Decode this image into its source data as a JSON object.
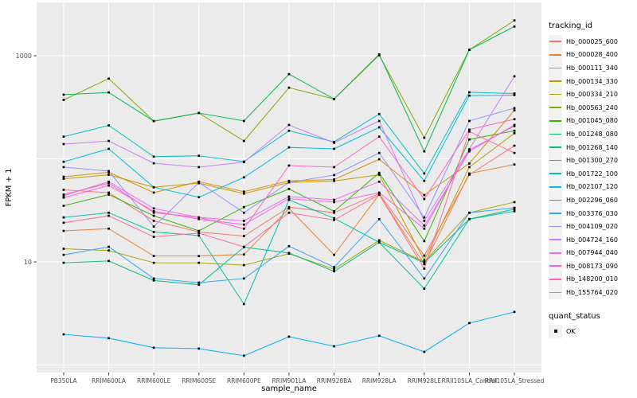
{
  "figure": {
    "background": "#ffffff",
    "panel_background": "#ebebeb",
    "gridline_color": "#ffffff",
    "tick_color": "#333333",
    "tick_label_color": "#4d4d4d",
    "axis_title_color": "#000000",
    "point_color": "#000000"
  },
  "axes": {
    "x_title": "sample_name",
    "y_title": "FPKM + 1",
    "y_tick_labels": [
      "1000",
      "10"
    ],
    "y_tick_values": [
      1000,
      10
    ]
  },
  "legend": {
    "color_title": "tracking_id",
    "shape_title": "quant_status",
    "shape_value": "OK"
  },
  "chart_data": {
    "type": "line",
    "title": "",
    "xlabel": "sample_name",
    "ylabel": "FPKM + 1",
    "y_scale": "log10",
    "ylim": [
      0.85,
      3300
    ],
    "y_gridlines": [
      1,
      10,
      100,
      1000
    ],
    "y_labeled_ticks": [
      10,
      1000
    ],
    "grid": true,
    "legend_position": "right",
    "point_shape": "filled-square",
    "categories": [
      "PB350LA",
      "RRIM600LA",
      "RRIM600LE",
      "RRIM600SE",
      "RRIM600PE",
      "RRIM901LA",
      "RRIM928BA",
      "RRIM928LA",
      "RRIM928LE",
      "RRII105LA_Control",
      "RRII105LA_Stressed"
    ],
    "series": [
      {
        "name": "Hb_000025_600",
        "color": "#F8766D",
        "values": [
          50,
          47,
          25,
          19.5,
          17.8,
          34,
          30,
          46,
          11.5,
          70,
          134
        ]
      },
      {
        "name": "Hb_000028_400",
        "color": "#EA8331",
        "values": [
          20,
          21,
          11.4,
          11.4,
          11.8,
          33,
          11.7,
          45,
          9.5,
          72,
          88
        ]
      },
      {
        "name": "Hb_000111_340",
        "color": "#D89000",
        "values": [
          67,
          74,
          47,
          60,
          48,
          61,
          63,
          99,
          44.5,
          90,
          295
        ]
      },
      {
        "name": "Hb_000134_330",
        "color": "#C09B00",
        "values": [
          64,
          70,
          53,
          58,
          46,
          59,
          61,
          70,
          10.4,
          83,
          177
        ]
      },
      {
        "name": "Hb_000334_210",
        "color": "#A3A500",
        "values": [
          13.4,
          12.9,
          9.8,
          9.8,
          9.3,
          12,
          8.5,
          16.2,
          10,
          30,
          38
        ]
      },
      {
        "name": "Hb_000563_240",
        "color": "#7CAE00",
        "values": [
          373,
          600,
          232,
          278,
          149,
          490,
          380,
          1010,
          160,
          1140,
          2200
        ]
      },
      {
        "name": "Hb_001045_080",
        "color": "#39B600",
        "values": [
          35,
          45,
          28,
          20,
          34,
          51,
          31,
          73,
          15.9,
          154,
          187
        ]
      },
      {
        "name": "Hb_001248_080",
        "color": "#00BB4E",
        "values": [
          419,
          440,
          232,
          278,
          233,
          663,
          380,
          1030,
          118,
          1140,
          1920
        ]
      },
      {
        "name": "Hb_001268_140",
        "color": "#00BF7D",
        "values": [
          9.8,
          10.2,
          6.6,
          6,
          13.9,
          12.2,
          8.1,
          15.5,
          9.8,
          26,
          32.5
        ]
      },
      {
        "name": "Hb_001300_270",
        "color": "#00C1A3",
        "values": [
          27,
          30,
          19.5,
          18,
          3.9,
          40,
          26.5,
          15.5,
          5.5,
          26,
          31
        ]
      },
      {
        "name": "Hb_001722_100",
        "color": "#00BFC4",
        "values": [
          164,
          211,
          105,
          107,
          94,
          187,
          146,
          272,
          72,
          442,
          430
        ]
      },
      {
        "name": "Hb_002107_120",
        "color": "#00BAE0",
        "values": [
          93.5,
          125,
          53,
          42.4,
          66,
          129,
          125,
          202,
          61,
          410,
          415
        ]
      },
      {
        "name": "Hb_002296_060",
        "color": "#00B0F6",
        "values": [
          1.98,
          1.82,
          1.47,
          1.44,
          1.23,
          1.88,
          1.52,
          1.92,
          1.34,
          2.55,
          3.27
        ]
      },
      {
        "name": "Hb_003376_030",
        "color": "#35A2FF",
        "values": [
          11.7,
          14,
          6.9,
          6.3,
          6.9,
          14.2,
          8.9,
          26,
          6.9,
          30,
          33.5
        ]
      },
      {
        "name": "Hb_004109_020",
        "color": "#9590FF",
        "values": [
          83,
          76,
          22,
          59,
          30,
          59,
          69.5,
          114,
          27,
          233,
          310
        ]
      },
      {
        "name": "Hb_004724_160",
        "color": "#C77CFF",
        "values": [
          139,
          149,
          90.5,
          83,
          93,
          213,
          143,
          233,
          25,
          124,
          631
        ]
      },
      {
        "name": "Hb_007944_040",
        "color": "#E76BF3",
        "values": [
          44,
          60,
          33,
          27,
          25,
          43,
          40,
          60,
          22.5,
          118,
          213
        ]
      },
      {
        "name": "Hb_008173_090",
        "color": "#FA62DB",
        "values": [
          42,
          55,
          31,
          26,
          23,
          41,
          38,
          47,
          21,
          122,
          208
        ]
      },
      {
        "name": "Hb_148200_010",
        "color": "#FF62BC",
        "values": [
          45,
          58,
          30,
          27,
          21,
          86,
          83,
          164,
          40.7,
          192,
          242
        ]
      },
      {
        "name": "Hb_155764_020",
        "color": "#FF6A98",
        "values": [
          24,
          28,
          17.5,
          19,
          14,
          30,
          25.5,
          45,
          8.6,
          184,
          114
        ]
      }
    ]
  }
}
